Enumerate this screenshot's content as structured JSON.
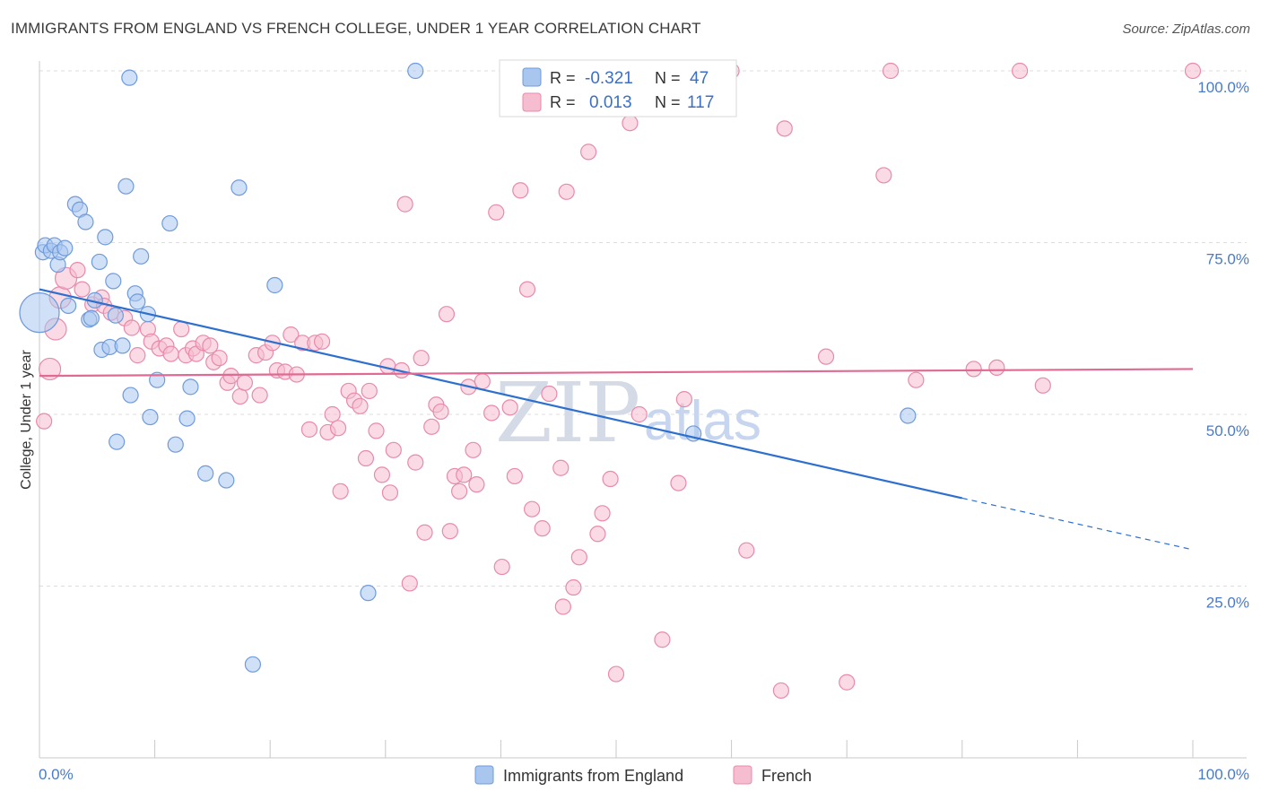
{
  "title": "IMMIGRANTS FROM ENGLAND VS FRENCH COLLEGE, UNDER 1 YEAR CORRELATION CHART",
  "source": "Source: ZipAtlas.com",
  "watermark": {
    "zip": "ZIP",
    "atlas": "atlas"
  },
  "colors": {
    "blue_fill": "#a9c6ee",
    "blue_stroke": "#6f9bdc",
    "blue_line": "#2d6fcf",
    "pink_fill": "#f6bdd0",
    "pink_stroke": "#e88aaa",
    "pink_line": "#e06a93",
    "tick_text": "#4a7bc8",
    "grid": "#dcdcdc"
  },
  "legend_top": {
    "rows": [
      {
        "r_label": "R = ",
        "r_value": "-0.321",
        "n_label": "N = ",
        "n_value": "47"
      },
      {
        "r_label": "R = ",
        "r_value": "0.013",
        "n_label": "N = ",
        "n_value": "117"
      }
    ]
  },
  "legend_bottom": [
    "Immigrants from England",
    "French"
  ],
  "chart_data": {
    "type": "scatter",
    "title": "IMMIGRANTS FROM ENGLAND VS FRENCH COLLEGE, UNDER 1 YEAR CORRELATION CHART",
    "xlabel": "",
    "ylabel": "College, Under 1 year",
    "xlim": [
      0,
      100
    ],
    "ylim": [
      0,
      100
    ],
    "x_tick_labels": [
      "0.0%",
      "100.0%"
    ],
    "y_ticks": [
      25,
      50,
      75,
      100
    ],
    "y_tick_labels": [
      "25.0%",
      "50.0%",
      "75.0%",
      "100.0%"
    ],
    "grid": true,
    "series": [
      {
        "name": "Immigrants from England",
        "r": -0.321,
        "n": 47,
        "trend": {
          "x0": 0,
          "y0": 68.2,
          "x1": 80,
          "y1": 37.8,
          "dashed_to_x": 100,
          "dashed_to_y": 30.3
        },
        "points": [
          [
            0.0,
            64.8,
            3
          ],
          [
            0.3,
            73.6,
            1
          ],
          [
            0.5,
            74.6,
            1
          ],
          [
            1.0,
            73.8,
            1
          ],
          [
            1.3,
            74.6,
            1
          ],
          [
            1.6,
            71.8,
            1
          ],
          [
            1.8,
            73.6,
            1
          ],
          [
            2.2,
            74.2,
            1
          ],
          [
            2.5,
            65.8,
            1
          ],
          [
            3.1,
            80.6,
            1
          ],
          [
            3.5,
            79.8,
            1
          ],
          [
            4.0,
            78.0,
            1
          ],
          [
            4.3,
            63.8,
            1
          ],
          [
            4.5,
            64.0,
            1
          ],
          [
            4.8,
            66.6,
            1
          ],
          [
            5.2,
            72.2,
            1
          ],
          [
            5.4,
            59.4,
            1
          ],
          [
            5.7,
            75.8,
            1
          ],
          [
            6.1,
            59.8,
            1
          ],
          [
            6.4,
            69.4,
            1
          ],
          [
            6.6,
            64.4,
            1
          ],
          [
            6.7,
            46.0,
            1
          ],
          [
            7.2,
            60.0,
            1
          ],
          [
            7.5,
            83.2,
            1
          ],
          [
            7.8,
            99.0,
            1
          ],
          [
            7.9,
            52.8,
            1
          ],
          [
            8.3,
            67.6,
            1
          ],
          [
            8.5,
            66.4,
            1
          ],
          [
            8.8,
            73.0,
            1
          ],
          [
            9.4,
            64.6,
            1
          ],
          [
            9.6,
            49.6,
            1
          ],
          [
            10.2,
            55.0,
            1
          ],
          [
            11.3,
            77.8,
            1
          ],
          [
            11.8,
            45.6,
            1
          ],
          [
            12.8,
            49.4,
            1
          ],
          [
            13.1,
            54.0,
            1
          ],
          [
            14.4,
            41.4,
            1
          ],
          [
            16.2,
            40.4,
            1
          ],
          [
            17.3,
            83.0,
            1
          ],
          [
            18.5,
            13.6,
            1
          ],
          [
            20.4,
            68.8,
            1
          ],
          [
            28.5,
            24.0,
            1
          ],
          [
            32.6,
            100.0,
            1
          ],
          [
            56.7,
            47.2,
            1
          ],
          [
            75.3,
            49.8,
            1
          ]
        ]
      },
      {
        "name": "French",
        "r": 0.013,
        "n": 117,
        "trend": {
          "x0": 0,
          "y0": 55.6,
          "x1": 100,
          "y1": 56.6
        },
        "points": [
          [
            0.4,
            49.0,
            1
          ],
          [
            0.9,
            56.6,
            2
          ],
          [
            1.4,
            62.4,
            2
          ],
          [
            1.8,
            67.0,
            2
          ],
          [
            2.3,
            69.8,
            2
          ],
          [
            3.3,
            71.0,
            1
          ],
          [
            3.7,
            68.2,
            1
          ],
          [
            4.6,
            66.0,
            1
          ],
          [
            5.4,
            67.0,
            1
          ],
          [
            5.6,
            65.8,
            1
          ],
          [
            6.2,
            64.8,
            1
          ],
          [
            7.4,
            64.0,
            1
          ],
          [
            8.0,
            62.6,
            1
          ],
          [
            8.5,
            58.6,
            1
          ],
          [
            9.4,
            62.4,
            1
          ],
          [
            9.7,
            60.6,
            1
          ],
          [
            10.4,
            59.6,
            1
          ],
          [
            11.0,
            60.0,
            1
          ],
          [
            11.4,
            58.8,
            1
          ],
          [
            12.3,
            62.4,
            1
          ],
          [
            12.7,
            58.6,
            1
          ],
          [
            13.3,
            59.6,
            1
          ],
          [
            13.6,
            58.8,
            1
          ],
          [
            14.2,
            60.4,
            1
          ],
          [
            14.8,
            60.0,
            1
          ],
          [
            15.1,
            57.6,
            1
          ],
          [
            15.6,
            58.2,
            1
          ],
          [
            16.3,
            54.6,
            1
          ],
          [
            16.6,
            55.6,
            1
          ],
          [
            17.4,
            52.6,
            1
          ],
          [
            17.8,
            54.6,
            1
          ],
          [
            18.8,
            58.6,
            1
          ],
          [
            19.1,
            52.8,
            1
          ],
          [
            19.6,
            59.0,
            1
          ],
          [
            20.2,
            60.4,
            1
          ],
          [
            20.6,
            56.4,
            1
          ],
          [
            21.3,
            56.2,
            1
          ],
          [
            21.8,
            61.6,
            1
          ],
          [
            22.3,
            55.8,
            1
          ],
          [
            22.8,
            60.4,
            1
          ],
          [
            23.4,
            47.8,
            1
          ],
          [
            23.9,
            60.4,
            1
          ],
          [
            24.5,
            60.6,
            1
          ],
          [
            25.0,
            47.4,
            1
          ],
          [
            25.4,
            50.0,
            1
          ],
          [
            25.9,
            48.0,
            1
          ],
          [
            26.1,
            38.8,
            1
          ],
          [
            26.8,
            53.4,
            1
          ],
          [
            27.3,
            52.0,
            1
          ],
          [
            27.8,
            51.2,
            1
          ],
          [
            28.3,
            43.6,
            1
          ],
          [
            28.6,
            53.4,
            1
          ],
          [
            29.2,
            47.6,
            1
          ],
          [
            29.7,
            41.2,
            1
          ],
          [
            30.2,
            57.0,
            1
          ],
          [
            30.4,
            38.6,
            1
          ],
          [
            30.7,
            44.8,
            1
          ],
          [
            31.4,
            56.4,
            1
          ],
          [
            31.7,
            80.6,
            1
          ],
          [
            32.1,
            25.4,
            1
          ],
          [
            32.6,
            43.0,
            1
          ],
          [
            33.1,
            58.2,
            1
          ],
          [
            33.4,
            32.8,
            1
          ],
          [
            34.0,
            48.2,
            1
          ],
          [
            34.4,
            51.4,
            1
          ],
          [
            34.8,
            50.4,
            1
          ],
          [
            35.3,
            64.6,
            1
          ],
          [
            35.6,
            33.0,
            1
          ],
          [
            36.0,
            41.0,
            1
          ],
          [
            36.4,
            38.8,
            1
          ],
          [
            36.8,
            41.2,
            1
          ],
          [
            37.2,
            54.0,
            1
          ],
          [
            37.6,
            44.8,
            1
          ],
          [
            37.9,
            39.8,
            1
          ],
          [
            38.4,
            54.8,
            1
          ],
          [
            39.2,
            50.2,
            1
          ],
          [
            39.6,
            79.4,
            1
          ],
          [
            40.1,
            27.8,
            1
          ],
          [
            40.8,
            51.0,
            1
          ],
          [
            41.2,
            41.0,
            1
          ],
          [
            41.7,
            82.6,
            1
          ],
          [
            42.3,
            68.2,
            1
          ],
          [
            42.7,
            36.2,
            1
          ],
          [
            43.6,
            33.4,
            1
          ],
          [
            44.2,
            53.0,
            1
          ],
          [
            45.2,
            42.2,
            1
          ],
          [
            45.4,
            22.0,
            1
          ],
          [
            45.7,
            82.4,
            1
          ],
          [
            46.3,
            24.8,
            1
          ],
          [
            46.8,
            29.2,
            1
          ],
          [
            47.6,
            88.2,
            1
          ],
          [
            48.4,
            32.6,
            1
          ],
          [
            48.8,
            35.6,
            1
          ],
          [
            49.5,
            40.6,
            1
          ],
          [
            50.0,
            12.2,
            1
          ],
          [
            51.2,
            92.4,
            1
          ],
          [
            52.0,
            50.0,
            1
          ],
          [
            54.0,
            17.2,
            1
          ],
          [
            55.4,
            40.0,
            1
          ],
          [
            55.9,
            52.2,
            1
          ],
          [
            60.0,
            100.0,
            1
          ],
          [
            61.3,
            30.2,
            1
          ],
          [
            64.3,
            9.8,
            1
          ],
          [
            64.6,
            91.6,
            1
          ],
          [
            68.2,
            58.4,
            1
          ],
          [
            70.0,
            11.0,
            1
          ],
          [
            73.2,
            84.8,
            1
          ],
          [
            73.8,
            100.0,
            1
          ],
          [
            76.0,
            55.0,
            1
          ],
          [
            81.0,
            56.6,
            1
          ],
          [
            83.0,
            56.8,
            1
          ],
          [
            85.0,
            100.0,
            1
          ],
          [
            87.0,
            54.2,
            1
          ],
          [
            100.0,
            100.0,
            1
          ]
        ]
      }
    ]
  },
  "axis": {
    "y_title": "College, Under 1 year",
    "x_left": "0.0%",
    "x_right": "100.0%"
  }
}
